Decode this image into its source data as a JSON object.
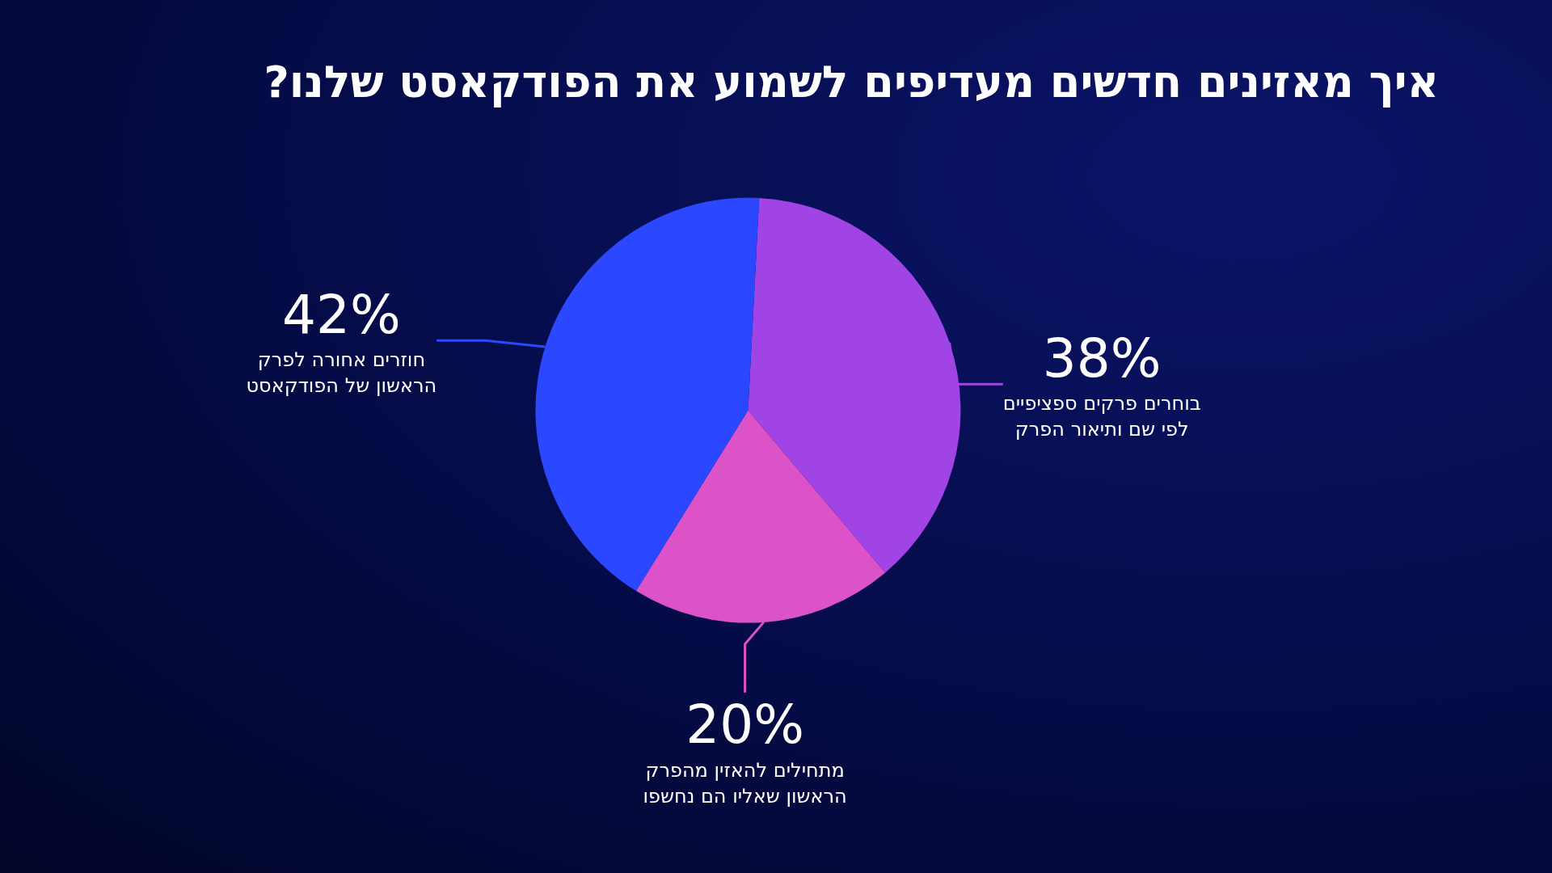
{
  "chart_data": {
    "type": "pie",
    "title": "איך מאזינים חדשים  מעדיפים לשמוע את הפודקאסט שלנו?",
    "categories": [
      "בוחרים פרקים ספציפיים לפי שם ותיאור הפרק",
      "מתחילים להאזין מהפרק הראשון שאליו הם נחשפו",
      "חוזרים אחורה לפרק הראשון של הפודקאסט"
    ],
    "values": [
      38,
      20,
      42
    ],
    "value_labels": [
      "38%",
      "20%",
      "42%"
    ],
    "colors": [
      "#a044e6",
      "#dc52c8",
      "#2b47ff"
    ]
  }
}
